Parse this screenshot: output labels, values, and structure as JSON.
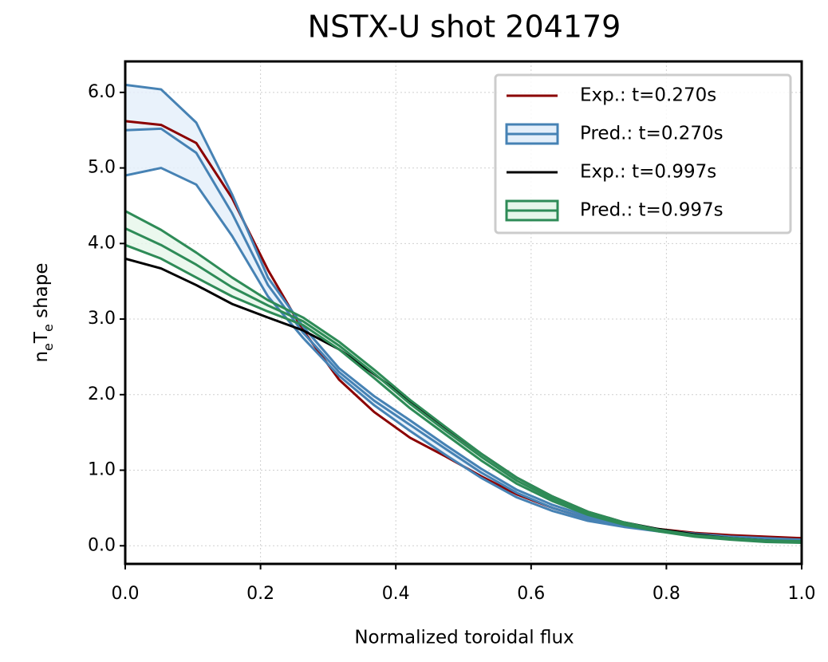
{
  "chart_data": {
    "type": "line",
    "title": "NSTX-U shot 204179",
    "xlabel": "Normalized toroidal flux",
    "ylabel": [
      {
        "text": "n"
      },
      {
        "text": "e",
        "sub": true
      },
      {
        "text": "T"
      },
      {
        "text": "e",
        "sub": true
      },
      {
        "text": " shape"
      }
    ],
    "x": [
      0,
      0.053,
      0.105,
      0.158,
      0.211,
      0.263,
      0.316,
      0.368,
      0.421,
      0.474,
      0.526,
      0.579,
      0.632,
      0.684,
      0.737,
      0.789,
      0.842,
      0.895,
      0.947,
      1.0
    ],
    "xlim": [
      0,
      1
    ],
    "ylim": [
      -0.24,
      6.41
    ],
    "xticks": [
      {
        "value": 0,
        "label": "0.0"
      },
      {
        "value": 0.2,
        "label": "0.2"
      },
      {
        "value": 0.4,
        "label": "0.4"
      },
      {
        "value": 0.6,
        "label": "0.6"
      },
      {
        "value": 0.8,
        "label": "0.8"
      },
      {
        "value": 1,
        "label": "1.0"
      }
    ],
    "yticks": [
      {
        "value": 0,
        "label": "0.0"
      },
      {
        "value": 1,
        "label": "1.0"
      },
      {
        "value": 2,
        "label": "2.0"
      },
      {
        "value": 3,
        "label": "3.0"
      },
      {
        "value": 4,
        "label": "4.0"
      },
      {
        "value": 5,
        "label": "5.0"
      },
      {
        "value": 6,
        "label": "6.0"
      }
    ],
    "grid": true,
    "legend": "upper right",
    "series": [
      {
        "name": "Exp.: t=0.270s",
        "color": "#8b0000",
        "values": [
          5.62,
          5.57,
          5.33,
          4.6,
          3.65,
          2.85,
          2.2,
          1.77,
          1.43,
          1.18,
          0.92,
          0.68,
          0.5,
          0.36,
          0.27,
          0.22,
          0.17,
          0.14,
          0.12,
          0.1
        ]
      },
      {
        "name": "Pred.: t=0.270s",
        "color": "#4682b4",
        "band_color": "#e4effa",
        "values": [
          5.5,
          5.52,
          5.2,
          4.4,
          3.45,
          2.82,
          2.3,
          1.92,
          1.6,
          1.28,
          0.97,
          0.7,
          0.5,
          0.36,
          0.27,
          0.2,
          0.15,
          0.11,
          0.09,
          0.07
        ],
        "lower": [
          4.9,
          5.0,
          4.78,
          4.1,
          3.3,
          2.75,
          2.25,
          1.86,
          1.52,
          1.2,
          0.9,
          0.64,
          0.46,
          0.33,
          0.25,
          0.19,
          0.14,
          0.1,
          0.08,
          0.06
        ],
        "upper": [
          6.1,
          6.04,
          5.6,
          4.65,
          3.55,
          2.9,
          2.35,
          1.98,
          1.66,
          1.33,
          1.02,
          0.74,
          0.54,
          0.39,
          0.29,
          0.21,
          0.16,
          0.12,
          0.1,
          0.08
        ]
      },
      {
        "name": "Exp.: t=0.997s",
        "color": "#000000",
        "values": [
          3.8,
          3.67,
          3.45,
          3.2,
          3.02,
          2.85,
          2.6,
          2.27,
          1.92,
          1.56,
          1.22,
          0.9,
          0.65,
          0.45,
          0.31,
          0.22,
          0.15,
          0.1,
          0.07,
          0.05
        ]
      },
      {
        "name": "Pred.: t=0.997s",
        "color": "#2e8b57",
        "band_color": "#e6f6ea",
        "values": [
          4.2,
          3.98,
          3.72,
          3.42,
          3.18,
          2.97,
          2.65,
          2.28,
          1.88,
          1.52,
          1.18,
          0.86,
          0.62,
          0.43,
          0.3,
          0.2,
          0.13,
          0.09,
          0.06,
          0.05
        ],
        "lower": [
          3.98,
          3.8,
          3.55,
          3.3,
          3.1,
          2.92,
          2.6,
          2.22,
          1.82,
          1.47,
          1.13,
          0.82,
          0.59,
          0.41,
          0.28,
          0.19,
          0.12,
          0.08,
          0.05,
          0.04
        ],
        "upper": [
          4.43,
          4.18,
          3.88,
          3.55,
          3.25,
          3.02,
          2.7,
          2.33,
          1.93,
          1.57,
          1.22,
          0.9,
          0.65,
          0.45,
          0.31,
          0.21,
          0.14,
          0.1,
          0.07,
          0.06
        ]
      }
    ]
  }
}
